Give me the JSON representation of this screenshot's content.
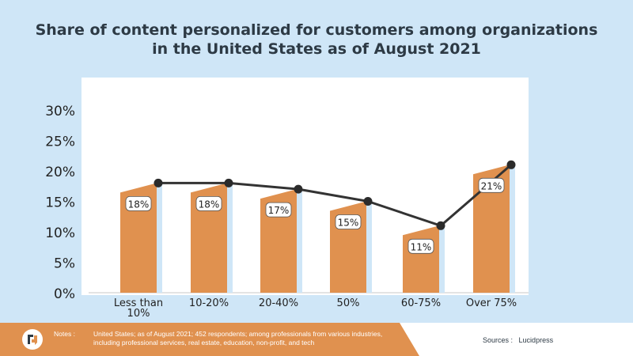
{
  "chart_data": {
    "type": "bar",
    "title": "Share of content personalized for customers among organizations in the United States as of August 2021",
    "title_lines": [
      "Share of content personalized for customers among organizations",
      "in the United States as of August 2021"
    ],
    "categories": [
      [
        "Less than",
        "10%"
      ],
      [
        "10-20%"
      ],
      [
        "20-40%"
      ],
      [
        "50%"
      ],
      [
        "60-75%"
      ],
      [
        "Over 75%"
      ]
    ],
    "values": [
      18,
      18,
      17,
      15,
      11,
      21
    ],
    "data_labels": [
      "18%",
      "18%",
      "17%",
      "15%",
      "11%",
      "21%"
    ],
    "line_overlay": true,
    "y_ticks": [
      0,
      5,
      10,
      15,
      20,
      25,
      30
    ],
    "y_tick_labels": [
      "0%",
      "5%",
      "10%",
      "15%",
      "20%",
      "25%",
      "30%"
    ],
    "ylim": [
      0,
      30
    ],
    "xlabel": "",
    "ylabel": "",
    "colors": {
      "bar": "#e0914f",
      "bar_side": "#cfe6f7",
      "line": "#333333",
      "marker": "#2b2b2b"
    }
  },
  "footer": {
    "notes_label": "Notes :",
    "notes_text": "United States; as of August 2021; 452 respondents; among professionals from various industries, including professional services, real estate, education, non-profit, and tech",
    "sources_label": "Sources :",
    "sources_value": "Lucidpress",
    "logo_icon": "lucidpress-logo-icon"
  }
}
